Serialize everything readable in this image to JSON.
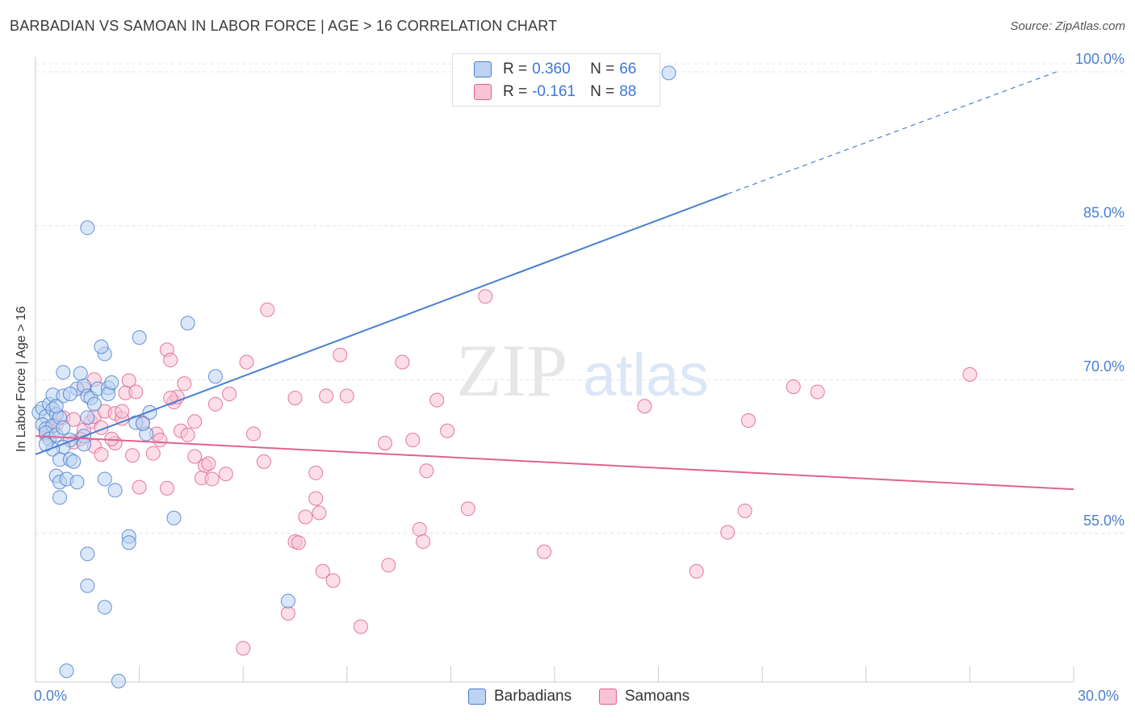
{
  "title": "BARBADIAN VS SAMOAN IN LABOR FORCE | AGE > 16 CORRELATION CHART",
  "source": "Source: ZipAtlas.com",
  "watermark": {
    "zip": "ZIP",
    "atlas": "atlas"
  },
  "legend": {
    "barbadians": {
      "r_label": "R =",
      "r_value": "0.360",
      "n_label": "N =",
      "n_value": "66"
    },
    "samoans": {
      "r_label": "R =",
      "r_value": "-0.161",
      "n_label": "N =",
      "n_value": "88"
    }
  },
  "colors": {
    "blue": "#4a7fd0",
    "blue_fill": "#bcd3f2",
    "pink": "#e0628f",
    "pink_fill": "#f7c3d5"
  },
  "chart_data": {
    "type": "scatter",
    "title": "BARBADIAN VS SAMOAN IN LABOR FORCE | AGE > 16 CORRELATION CHART",
    "xlabel": "",
    "ylabel": "In Labor Force | Age > 16",
    "xlim": [
      0,
      30
    ],
    "ylim": [
      40.5,
      101.5
    ],
    "x_tick_labels": {
      "min": "0.0%",
      "max": "30.0%"
    },
    "y_ticks": [
      {
        "value": 55,
        "label": "55.0%"
      },
      {
        "value": 70,
        "label": "70.0%"
      },
      {
        "value": 85,
        "label": "85.0%"
      },
      {
        "value": 100,
        "label": "100.0%"
      }
    ],
    "grid": true,
    "legend_position": "bottom",
    "series": [
      {
        "name": "Barbadians",
        "color": "#4a7fd0",
        "r": 0.36,
        "n": 66,
        "trend": {
          "x0": 0,
          "y0": 62.7,
          "x1": 20.0,
          "y1": 88.1,
          "dashed_to_x": 29.5,
          "dashed_to_y": 100.0
        },
        "points": [
          [
            0.1,
            66.8
          ],
          [
            0.2,
            67.2
          ],
          [
            0.3,
            66.4
          ],
          [
            0.4,
            67.6
          ],
          [
            0.5,
            67.1
          ],
          [
            0.6,
            66.6
          ],
          [
            0.2,
            65.6
          ],
          [
            0.3,
            65.2
          ],
          [
            0.5,
            65.5
          ],
          [
            0.7,
            66.3
          ],
          [
            0.3,
            64.8
          ],
          [
            0.4,
            64.2
          ],
          [
            0.6,
            64.6
          ],
          [
            0.8,
            65.3
          ],
          [
            0.5,
            68.5
          ],
          [
            0.8,
            68.4
          ],
          [
            1.2,
            69.1
          ],
          [
            1.4,
            69.4
          ],
          [
            1.5,
            68.4
          ],
          [
            1.3,
            70.6
          ],
          [
            0.8,
            70.7
          ],
          [
            1.6,
            68.2
          ],
          [
            1.7,
            67.6
          ],
          [
            1.8,
            69.1
          ],
          [
            2.1,
            69.2
          ],
          [
            2.1,
            68.6
          ],
          [
            2.2,
            69.7
          ],
          [
            2.0,
            72.5
          ],
          [
            1.9,
            73.2
          ],
          [
            1.0,
            64.1
          ],
          [
            1.4,
            64.5
          ],
          [
            1.5,
            66.3
          ],
          [
            1.4,
            63.7
          ],
          [
            0.8,
            63.4
          ],
          [
            0.5,
            63.2
          ],
          [
            0.7,
            62.2
          ],
          [
            1.0,
            62.2
          ],
          [
            1.1,
            62.0
          ],
          [
            0.6,
            60.6
          ],
          [
            0.7,
            60.0
          ],
          [
            0.9,
            60.3
          ],
          [
            1.2,
            60.0
          ],
          [
            2.0,
            60.3
          ],
          [
            2.3,
            59.2
          ],
          [
            0.7,
            58.5
          ],
          [
            3.0,
            74.1
          ],
          [
            4.4,
            75.5
          ],
          [
            5.2,
            70.3
          ],
          [
            3.2,
            64.7
          ],
          [
            3.3,
            66.8
          ],
          [
            2.9,
            65.8
          ],
          [
            4.0,
            56.5
          ],
          [
            2.7,
            54.7
          ],
          [
            2.7,
            54.1
          ],
          [
            1.5,
            53.0
          ],
          [
            1.5,
            49.9
          ],
          [
            2.0,
            47.8
          ],
          [
            1.5,
            84.8
          ],
          [
            0.9,
            41.6
          ],
          [
            2.4,
            40.6
          ],
          [
            7.3,
            48.4
          ],
          [
            18.3,
            99.9
          ],
          [
            3.1,
            65.7
          ],
          [
            0.3,
            63.7
          ],
          [
            0.6,
            67.4
          ],
          [
            1.0,
            68.6
          ]
        ]
      },
      {
        "name": "Samoans",
        "color": "#e0628f",
        "r": -0.161,
        "n": 88,
        "trend": {
          "x0": 0,
          "y0": 64.5,
          "x1": 30,
          "y1": 59.3
        },
        "points": [
          [
            0.3,
            64.6
          ],
          [
            0.4,
            65.2
          ],
          [
            0.6,
            65.6
          ],
          [
            0.8,
            66.3
          ],
          [
            1.1,
            66.1
          ],
          [
            1.4,
            65.1
          ],
          [
            1.6,
            65.9
          ],
          [
            1.3,
            64.2
          ],
          [
            1.7,
            63.5
          ],
          [
            1.9,
            62.7
          ],
          [
            1.7,
            66.4
          ],
          [
            2.0,
            66.9
          ],
          [
            2.3,
            66.7
          ],
          [
            2.5,
            66.2
          ],
          [
            2.5,
            66.9
          ],
          [
            2.3,
            63.8
          ],
          [
            2.8,
            62.6
          ],
          [
            3.0,
            59.5
          ],
          [
            3.4,
            62.8
          ],
          [
            3.5,
            64.7
          ],
          [
            3.8,
            59.4
          ],
          [
            4.2,
            65.0
          ],
          [
            4.0,
            67.8
          ],
          [
            4.1,
            68.3
          ],
          [
            3.9,
            68.2
          ],
          [
            2.7,
            69.9
          ],
          [
            2.6,
            68.7
          ],
          [
            1.4,
            69.1
          ],
          [
            1.7,
            70.0
          ],
          [
            3.8,
            72.9
          ],
          [
            3.9,
            71.9
          ],
          [
            4.3,
            69.6
          ],
          [
            4.6,
            65.9
          ],
          [
            4.6,
            62.5
          ],
          [
            4.9,
            61.6
          ],
          [
            4.8,
            60.4
          ],
          [
            5.0,
            61.8
          ],
          [
            5.2,
            67.6
          ],
          [
            5.6,
            68.6
          ],
          [
            5.5,
            60.8
          ],
          [
            6.1,
            71.7
          ],
          [
            6.3,
            64.7
          ],
          [
            6.6,
            62.0
          ],
          [
            6.7,
            76.8
          ],
          [
            7.3,
            47.2
          ],
          [
            7.5,
            54.2
          ],
          [
            7.5,
            68.2
          ],
          [
            7.6,
            54.1
          ],
          [
            7.8,
            56.6
          ],
          [
            8.1,
            60.9
          ],
          [
            8.1,
            58.4
          ],
          [
            8.2,
            57.0
          ],
          [
            8.3,
            51.3
          ],
          [
            8.4,
            68.4
          ],
          [
            8.6,
            50.4
          ],
          [
            8.8,
            72.4
          ],
          [
            9.0,
            68.4
          ],
          [
            9.4,
            45.9
          ],
          [
            10.1,
            63.8
          ],
          [
            10.2,
            51.9
          ],
          [
            10.6,
            71.7
          ],
          [
            10.9,
            64.1
          ],
          [
            11.1,
            55.4
          ],
          [
            11.2,
            54.2
          ],
          [
            11.3,
            61.1
          ],
          [
            11.6,
            68.0
          ],
          [
            11.9,
            65.0
          ],
          [
            12.5,
            57.4
          ],
          [
            13.0,
            78.1
          ],
          [
            14.7,
            53.2
          ],
          [
            17.6,
            67.4
          ],
          [
            19.1,
            51.3
          ],
          [
            20.0,
            55.1
          ],
          [
            20.5,
            57.2
          ],
          [
            20.6,
            66.0
          ],
          [
            21.9,
            69.3
          ],
          [
            22.6,
            68.8
          ],
          [
            27.0,
            70.5
          ],
          [
            6.0,
            43.8
          ],
          [
            5.1,
            60.3
          ],
          [
            4.4,
            64.6
          ],
          [
            3.1,
            65.8
          ],
          [
            2.2,
            64.2
          ],
          [
            1.9,
            65.3
          ],
          [
            1.1,
            63.9
          ],
          [
            0.5,
            64.9
          ],
          [
            2.9,
            68.8
          ],
          [
            3.6,
            64.1
          ]
        ]
      }
    ]
  }
}
